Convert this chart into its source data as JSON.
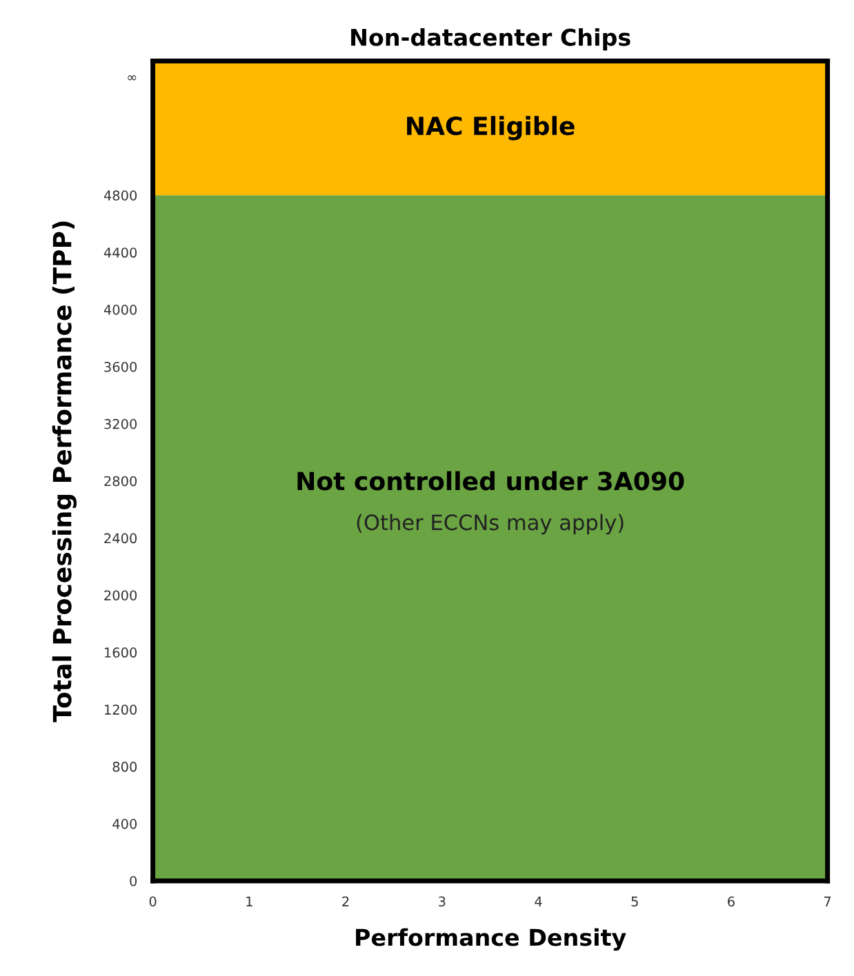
{
  "chart_data": {
    "type": "area",
    "title": "Non-datacenter Chips",
    "xlabel": "Performance Density",
    "ylabel": "Total Processing Performance (TPP)",
    "x": [
      0,
      7
    ],
    "series": [
      {
        "color": "#6aa443",
        "values": [
          4800,
          4800
        ]
      }
    ],
    "xlim": [
      0,
      7
    ],
    "xticks": [
      0,
      1,
      2,
      3,
      4,
      5,
      6,
      7
    ],
    "ylim": [
      0,
      5740
    ],
    "yticks": [
      0,
      400,
      800,
      1200,
      1600,
      2000,
      2400,
      2800,
      3200,
      3600,
      4000,
      4400,
      4800,
      {
        "value": 5630,
        "label": "∞"
      }
    ],
    "bands": [
      {
        "axis": "y",
        "from": 4800,
        "to": 5740,
        "label": "NAC Eligible",
        "color": "#ffb900"
      }
    ],
    "annotations": [
      "Not controlled under 3A090",
      "(Other ECCNs may apply)"
    ]
  }
}
